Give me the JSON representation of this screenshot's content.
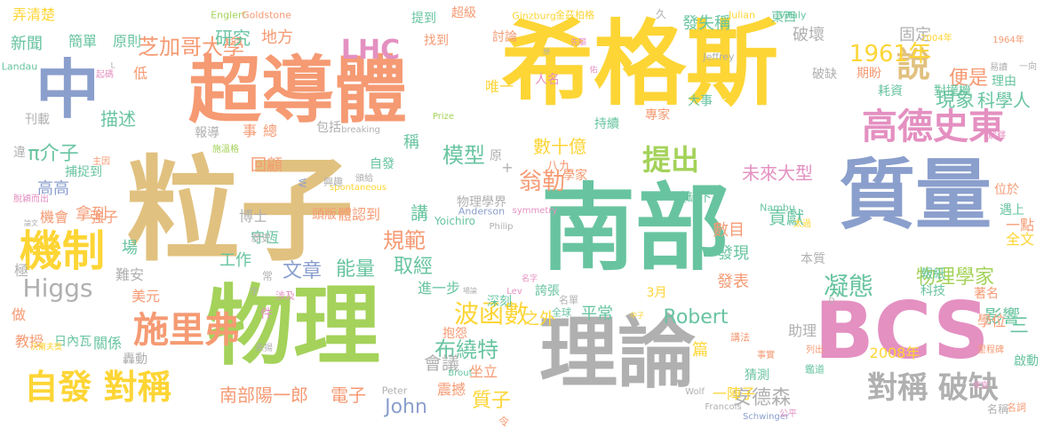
{
  "palette": {
    "yellow": "#fdd535",
    "tan": "#e1c17f",
    "orange": "#f59a73",
    "teal": "#68c4a0",
    "blue": "#8b9fcd",
    "pink": "#e490c1",
    "green": "#a4d25a",
    "gray": "#b0b0b0"
  },
  "words": [
    {
      "t": "希格斯",
      "c": "yellow"
    },
    {
      "t": "粒子",
      "c": "tan"
    },
    {
      "t": "南部",
      "c": "teal"
    },
    {
      "t": "質量",
      "c": "blue"
    },
    {
      "t": "物理",
      "c": "green"
    },
    {
      "t": "理論",
      "c": "gray"
    },
    {
      "t": "BCS",
      "c": "pink"
    },
    {
      "t": "超導體",
      "c": "orange"
    },
    {
      "t": "中",
      "c": "blue"
    },
    {
      "t": "機制",
      "c": "yellow"
    },
    {
      "t": "高德史東",
      "c": "pink"
    },
    {
      "t": "自發 對稱",
      "c": "yellow"
    },
    {
      "t": "施里弗",
      "c": "orange"
    },
    {
      "t": "對稱 破缺",
      "c": "gray"
    },
    {
      "t": "說",
      "c": "tan"
    },
    {
      "t": "提出",
      "c": "green"
    },
    {
      "t": "LHC",
      "c": "pink"
    },
    {
      "t": "1961年",
      "c": "yellow"
    },
    {
      "t": "芝加哥大學",
      "c": "orange"
    },
    {
      "t": "π介子",
      "c": "teal"
    },
    {
      "t": "Higgs",
      "c": "gray"
    },
    {
      "t": "模型",
      "c": "teal"
    },
    {
      "t": "翁勒",
      "c": "orange"
    },
    {
      "t": "波函數",
      "c": "yellow"
    },
    {
      "t": "布繞特",
      "c": "teal"
    },
    {
      "t": "凝態",
      "c": "teal"
    },
    {
      "t": "物理學家",
      "c": "green"
    },
    {
      "t": "Robert",
      "c": "teal"
    },
    {
      "t": "John",
      "c": "blue"
    },
    {
      "t": "質子",
      "c": "yellow"
    },
    {
      "t": "南部陽一郎",
      "c": "orange"
    },
    {
      "t": "電子",
      "c": "orange"
    },
    {
      "t": "安德森",
      "c": "gray"
    },
    {
      "t": "規範",
      "c": "orange"
    },
    {
      "t": "文章",
      "c": "blue"
    },
    {
      "t": "能量",
      "c": "teal"
    },
    {
      "t": "取經",
      "c": "teal"
    },
    {
      "t": "未來大型",
      "c": "pink"
    },
    {
      "t": "便是",
      "c": "orange"
    },
    {
      "t": "現象",
      "c": "teal"
    },
    {
      "t": "科學人",
      "c": "teal"
    },
    {
      "t": "研究",
      "c": "teal"
    },
    {
      "t": "新聞",
      "c": "teal"
    },
    {
      "t": "地方",
      "c": "orange"
    },
    {
      "t": "描述",
      "c": "teal"
    },
    {
      "t": "回顧",
      "c": "orange"
    },
    {
      "t": "數十億",
      "c": "yellow"
    },
    {
      "t": "破壞",
      "c": "gray"
    },
    {
      "t": "固定",
      "c": "gray"
    },
    {
      "t": "發失稱",
      "c": "teal"
    },
    {
      "t": "高高",
      "c": "blue"
    },
    {
      "t": "拿到",
      "c": "orange"
    },
    {
      "t": "工作",
      "c": "teal"
    },
    {
      "t": "發表",
      "c": "orange"
    },
    {
      "t": "發現",
      "c": "teal"
    },
    {
      "t": "之外",
      "c": "yellow"
    },
    {
      "t": "平常",
      "c": "teal"
    },
    {
      "t": "數目",
      "c": "orange"
    },
    {
      "t": "貢獻",
      "c": "teal"
    },
    {
      "t": "影響",
      "c": "teal"
    },
    {
      "t": "三",
      "c": "teal"
    },
    {
      "t": "會議",
      "c": "gray"
    },
    {
      "t": "講",
      "c": "teal"
    },
    {
      "t": "稱",
      "c": "teal"
    },
    {
      "t": "弄清楚",
      "c": "yellow"
    },
    {
      "t": "簡單",
      "c": "teal"
    },
    {
      "t": "原則",
      "c": "teal"
    },
    {
      "t": "低",
      "c": "orange"
    },
    {
      "t": "刊載",
      "c": "gray"
    },
    {
      "t": "機會",
      "c": "orange"
    },
    {
      "t": "強子",
      "c": "orange"
    },
    {
      "t": "場",
      "c": "teal"
    },
    {
      "t": "極",
      "c": "gray"
    },
    {
      "t": "難安",
      "c": "gray"
    },
    {
      "t": "美元",
      "c": "orange"
    },
    {
      "t": "教授",
      "c": "orange"
    },
    {
      "t": "日內瓦",
      "c": "teal"
    },
    {
      "t": "關係",
      "c": "teal"
    },
    {
      "t": "轟動",
      "c": "gray"
    },
    {
      "t": "做",
      "c": "orange"
    },
    {
      "t": "博士",
      "c": "gray"
    },
    {
      "t": "守恆",
      "c": "teal"
    },
    {
      "t": "體認到",
      "c": "orange"
    },
    {
      "t": "頭版",
      "c": "orange"
    },
    {
      "t": "物理學界",
      "c": "gray"
    },
    {
      "t": "進一步",
      "c": "teal"
    },
    {
      "t": "深刻",
      "c": "teal"
    },
    {
      "t": "誇張",
      "c": "teal"
    },
    {
      "t": "震撼",
      "c": "orange"
    },
    {
      "t": "坐立",
      "c": "orange"
    },
    {
      "t": "抱怨",
      "c": "orange"
    },
    {
      "t": "篇",
      "c": "yellow"
    },
    {
      "t": "一陣子",
      "c": "yellow"
    },
    {
      "t": "猜測",
      "c": "teal"
    },
    {
      "t": "助理",
      "c": "gray"
    },
    {
      "t": "2008年",
      "c": "yellow"
    },
    {
      "t": "一點",
      "c": "orange"
    },
    {
      "t": "全文",
      "c": "yellow"
    },
    {
      "t": "學位",
      "c": "orange"
    },
    {
      "t": "著名",
      "c": "orange"
    },
    {
      "t": "本質",
      "c": "gray"
    },
    {
      "t": "報紙",
      "c": "teal"
    },
    {
      "t": "科技",
      "c": "teal"
    },
    {
      "t": "耗資",
      "c": "teal"
    },
    {
      "t": "對撞機",
      "c": "teal"
    },
    {
      "t": "期盼",
      "c": "orange"
    },
    {
      "t": "理由",
      "c": "teal"
    },
    {
      "t": "破缺下",
      "c": "teal"
    },
    {
      "t": "遇上",
      "c": "teal"
    },
    {
      "t": "位於",
      "c": "orange"
    },
    {
      "t": "總",
      "c": "orange"
    },
    {
      "t": "事",
      "c": "orange"
    },
    {
      "t": "包括",
      "c": "gray"
    },
    {
      "t": "報導",
      "c": "gray"
    },
    {
      "t": "違",
      "c": "gray"
    },
    {
      "t": "自發",
      "c": "teal"
    },
    {
      "t": "提到",
      "c": "teal"
    },
    {
      "t": "找到",
      "c": "orange"
    },
    {
      "t": "超級",
      "c": "orange"
    },
    {
      "t": "討論",
      "c": "orange"
    },
    {
      "t": "唯一",
      "c": "yellow"
    },
    {
      "t": "人名",
      "c": "pink"
    },
    {
      "t": "大事",
      "c": "teal"
    },
    {
      "t": "持續",
      "c": "teal"
    },
    {
      "t": "專家",
      "c": "orange"
    },
    {
      "t": "東西",
      "c": "teal"
    },
    {
      "t": "破缺",
      "c": "gray"
    },
    {
      "t": "3月",
      "c": "yellow"
    },
    {
      "t": "原",
      "c": "gray"
    },
    {
      "t": "八九",
      "c": "orange"
    },
    {
      "t": "久",
      "c": "gray"
    },
    {
      "t": "學家",
      "c": "orange"
    },
    {
      "t": "Ginzburg",
      "c": "yellow"
    },
    {
      "t": "金茲柏格",
      "c": "yellow"
    },
    {
      "t": "Englert",
      "c": "green"
    },
    {
      "t": "Goldstone",
      "c": "orange"
    },
    {
      "t": "Julian",
      "c": "yellow"
    },
    {
      "t": "Vitaly",
      "c": "teal"
    },
    {
      "t": "Jeffrey",
      "c": "gray"
    },
    {
      "t": "2004年",
      "c": "yellow"
    },
    {
      "t": "1964年",
      "c": "orange"
    },
    {
      "t": "Landau",
      "c": "teal"
    },
    {
      "t": "L",
      "c": "gray"
    },
    {
      "t": "Prize",
      "c": "green"
    },
    {
      "t": "breaking",
      "c": "gray"
    },
    {
      "t": "spontaneous",
      "c": "yellow"
    },
    {
      "t": "W",
      "c": "blue"
    },
    {
      "t": "Nambu",
      "c": "teal"
    },
    {
      "t": "Anderson",
      "c": "blue"
    },
    {
      "t": "symmetry",
      "c": "pink"
    },
    {
      "t": "Philip",
      "c": "gray"
    },
    {
      "t": "Yoichiro",
      "c": "teal"
    },
    {
      "t": "Lev",
      "c": "pink"
    },
    {
      "t": "Peter",
      "c": "gray"
    },
    {
      "t": "Francois",
      "c": "gray"
    },
    {
      "t": "Brout",
      "c": "teal"
    },
    {
      "t": "Wolf",
      "c": "gray"
    },
    {
      "t": "Schwinger",
      "c": "blue"
    },
    {
      "t": "名稱",
      "c": "gray"
    },
    {
      "t": "名單",
      "c": "gray"
    },
    {
      "t": "全球",
      "c": "teal"
    },
    {
      "t": "講法",
      "c": "orange"
    },
    {
      "t": "令",
      "c": "orange"
    },
    {
      "t": "公平",
      "c": "pink"
    },
    {
      "t": "鑑道",
      "c": "teal"
    },
    {
      "t": "列出",
      "c": "orange"
    },
    {
      "t": "事實",
      "c": "orange"
    },
    {
      "t": "太過",
      "c": "yellow"
    },
    {
      "t": "使宜",
      "c": "pink"
    },
    {
      "t": "名詞",
      "c": "orange"
    },
    {
      "t": "啟動",
      "c": "teal"
    },
    {
      "t": "易讀",
      "c": "gray"
    },
    {
      "t": "一向",
      "c": "gray"
    },
    {
      "t": "解釋",
      "c": "pink"
    },
    {
      "t": "里程碑",
      "c": "orange"
    },
    {
      "t": "起碼",
      "c": "pink"
    },
    {
      "t": "主因",
      "c": "orange"
    },
    {
      "t": "施溫格",
      "c": "green"
    },
    {
      "t": "頒給",
      "c": "gray"
    },
    {
      "t": "興趣",
      "c": "gray"
    },
    {
      "t": "捕捉到",
      "c": "teal"
    },
    {
      "t": "脫穎而出",
      "c": "pink"
    },
    {
      "t": "論文",
      "c": "gray"
    },
    {
      "t": "歷史",
      "c": "gray"
    },
    {
      "t": "字",
      "c": "gray"
    },
    {
      "t": "涉及",
      "c": "pink"
    },
    {
      "t": "件",
      "c": "pink"
    },
    {
      "t": "表揚",
      "c": "gray"
    },
    {
      "t": "沃爾夫獎",
      "c": "yellow"
    },
    {
      "t": "場論",
      "c": "gray"
    },
    {
      "t": "名字",
      "c": "pink"
    },
    {
      "t": "中子",
      "c": "yellow"
    },
    {
      "t": "述",
      "c": "orange"
    },
    {
      "t": "常",
      "c": "gray"
    },
    {
      "t": "先驅",
      "c": "pink"
    },
    {
      "t": "佑",
      "c": "pink"
    },
    {
      "t": "想",
      "c": "gray"
    },
    {
      "t": "+",
      "c": "gray"
    },
    {
      "t": "D",
      "c": "gray"
    }
  ]
}
